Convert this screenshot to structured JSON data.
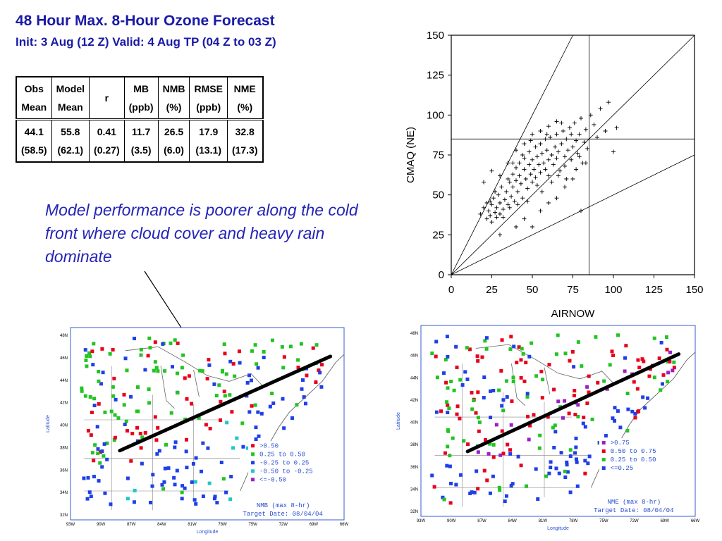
{
  "header": {
    "title": "48 Hour Max. 8-Hour Ozone Forecast",
    "subtitle": "Init: 3 Aug (12 Z)  Valid: 4 Aug TP (04 Z to 03 Z)"
  },
  "stats_table": {
    "headers": [
      [
        "Obs",
        "Mean"
      ],
      [
        "Model",
        "Mean"
      ],
      [
        "r",
        ""
      ],
      [
        "MB",
        "(ppb)"
      ],
      [
        "NMB",
        "(%)"
      ],
      [
        "RMSE",
        "(ppb)"
      ],
      [
        "NME",
        "(%)"
      ]
    ],
    "values": [
      [
        "44.1",
        "(58.5)"
      ],
      [
        "55.8",
        "(62.1)"
      ],
      [
        "0.41",
        "(0.27)"
      ],
      [
        "11.7",
        "(3.5)"
      ],
      [
        "26.5",
        "(6.0)"
      ],
      [
        "17.9",
        "(13.1)"
      ],
      [
        "32.8",
        "(17.3)"
      ]
    ]
  },
  "annotation": "Model performance is poorer along the cold front where cloud cover and heavy rain dominate",
  "chart_data": [
    {
      "type": "scatter",
      "xlabel": "AIRNOW",
      "ylabel": "CMAQ (NE)",
      "xlim": [
        0,
        150
      ],
      "ylim": [
        0,
        150
      ],
      "xticks": [
        "0",
        "25",
        "50",
        "75",
        "100",
        "125",
        "150"
      ],
      "yticks": [
        "0",
        "25",
        "50",
        "75",
        "100",
        "125",
        "150"
      ],
      "reference_lines": {
        "vertical_x": 85,
        "horizontal_y": 85,
        "diagonal_slopes": [
          0.5,
          1,
          2
        ]
      },
      "points": [
        [
          18,
          38
        ],
        [
          20,
          42
        ],
        [
          22,
          35
        ],
        [
          22,
          45
        ],
        [
          23,
          40
        ],
        [
          24,
          37
        ],
        [
          25,
          44
        ],
        [
          25,
          33
        ],
        [
          26,
          48
        ],
        [
          27,
          39
        ],
        [
          28,
          42
        ],
        [
          28,
          36
        ],
        [
          29,
          50
        ],
        [
          30,
          45
        ],
        [
          30,
          38
        ],
        [
          31,
          55
        ],
        [
          32,
          41
        ],
        [
          33,
          47
        ],
        [
          34,
          52
        ],
        [
          35,
          44
        ],
        [
          35,
          60
        ],
        [
          36,
          58
        ],
        [
          37,
          49
        ],
        [
          38,
          63
        ],
        [
          38,
          55
        ],
        [
          39,
          46
        ],
        [
          40,
          67
        ],
        [
          40,
          59
        ],
        [
          41,
          52
        ],
        [
          42,
          70
        ],
        [
          42,
          62
        ],
        [
          43,
          57
        ],
        [
          44,
          48
        ],
        [
          45,
          66
        ],
        [
          45,
          73
        ],
        [
          46,
          60
        ],
        [
          47,
          54
        ],
        [
          48,
          69
        ],
        [
          48,
          77
        ],
        [
          49,
          63
        ],
        [
          50,
          58
        ],
        [
          50,
          72
        ],
        [
          51,
          66
        ],
        [
          52,
          80
        ],
        [
          52,
          61
        ],
        [
          53,
          74
        ],
        [
          54,
          69
        ],
        [
          55,
          64
        ],
        [
          55,
          82
        ],
        [
          56,
          76
        ],
        [
          57,
          70
        ],
        [
          58,
          66
        ],
        [
          58,
          85
        ],
        [
          59,
          78
        ],
        [
          60,
          72
        ],
        [
          60,
          62
        ],
        [
          61,
          86
        ],
        [
          62,
          75
        ],
        [
          63,
          69
        ],
        [
          64,
          80
        ],
        [
          65,
          88
        ],
        [
          65,
          73
        ],
        [
          66,
          77
        ],
        [
          67,
          65
        ],
        [
          68,
          82
        ],
        [
          69,
          90
        ],
        [
          70,
          74
        ],
        [
          70,
          68
        ],
        [
          71,
          85
        ],
        [
          72,
          78
        ],
        [
          73,
          92
        ],
        [
          74,
          72
        ],
        [
          75,
          80
        ],
        [
          76,
          95
        ],
        [
          77,
          84
        ],
        [
          78,
          76
        ],
        [
          79,
          88
        ],
        [
          80,
          98
        ],
        [
          81,
          70
        ],
        [
          82,
          83
        ],
        [
          83,
          91
        ],
        [
          84,
          79
        ],
        [
          86,
          100
        ],
        [
          88,
          94
        ],
        [
          90,
          86
        ],
        [
          92,
          104
        ],
        [
          95,
          90
        ],
        [
          97,
          108
        ],
        [
          100,
          77
        ],
        [
          102,
          92
        ],
        [
          20,
          58
        ],
        [
          25,
          65
        ],
        [
          30,
          62
        ],
        [
          35,
          70
        ],
        [
          40,
          78
        ],
        [
          45,
          82
        ],
        [
          50,
          88
        ],
        [
          55,
          90
        ],
        [
          60,
          93
        ],
        [
          65,
          96
        ],
        [
          30,
          25
        ],
        [
          40,
          30
        ],
        [
          45,
          35
        ],
        [
          55,
          40
        ],
        [
          60,
          45
        ],
        [
          70,
          55
        ],
        [
          75,
          60
        ],
        [
          80,
          40
        ],
        [
          65,
          48
        ],
        [
          50,
          30
        ],
        [
          24,
          46
        ],
        [
          27,
          52
        ],
        [
          32,
          36
        ],
        [
          36,
          42
        ],
        [
          38,
          70
        ],
        [
          41,
          44
        ],
        [
          44,
          75
        ],
        [
          47,
          46
        ],
        [
          49,
          84
        ],
        [
          53,
          56
        ],
        [
          56,
          52
        ],
        [
          59,
          88
        ],
        [
          62,
          58
        ],
        [
          66,
          62
        ],
        [
          68,
          95
        ],
        [
          71,
          60
        ],
        [
          74,
          88
        ],
        [
          77,
          66
        ],
        [
          79,
          74
        ],
        [
          83,
          70
        ]
      ]
    },
    {
      "type": "map",
      "title": "NMB  (max 8-hr)",
      "subtitle": "Target Date: 08/04/04",
      "xlabel": "Longitude",
      "ylabel": "Latitude",
      "lat_ticks": [
        "48N",
        "46N",
        "44N",
        "42N",
        "40N",
        "38N",
        "36N",
        "34N",
        "32N"
      ],
      "lon_ticks": [
        "93W",
        "90W",
        "87W",
        "84W",
        "81W",
        "78W",
        "75W",
        "72W",
        "69W",
        "66W"
      ],
      "legend": [
        {
          "label": ">0.50",
          "color": "#e8001c"
        },
        {
          "label": "0.25 to 0.50",
          "color": "#22c422"
        },
        {
          "label": "-0.25 to 0.25",
          "color": "#1f3fe8"
        },
        {
          "label": "-0.50 to -0.25",
          "color": "#1fc7c7"
        },
        {
          "label": "<=-0.50",
          "color": "#9b1fc7"
        }
      ]
    },
    {
      "type": "map",
      "title": "NME  (max 8-hr)",
      "subtitle": "Target Date: 08/04/04",
      "xlabel": "Longitude",
      "ylabel": "Latitude",
      "lat_ticks": [
        "48N",
        "46N",
        "44N",
        "42N",
        "40N",
        "38N",
        "36N",
        "34N",
        "32N"
      ],
      "lon_ticks": [
        "93W",
        "90W",
        "87W",
        "84W",
        "81W",
        "78W",
        "75W",
        "72W",
        "69W",
        "66W"
      ],
      "legend": [
        {
          "label": ">0.75",
          "color": "#9b1fc7"
        },
        {
          "label": "0.50 to 0.75",
          "color": "#e8001c"
        },
        {
          "label": "0.25 to 0.50",
          "color": "#22c422"
        },
        {
          "label": "<=0.25",
          "color": "#1f3fe8"
        }
      ]
    }
  ]
}
